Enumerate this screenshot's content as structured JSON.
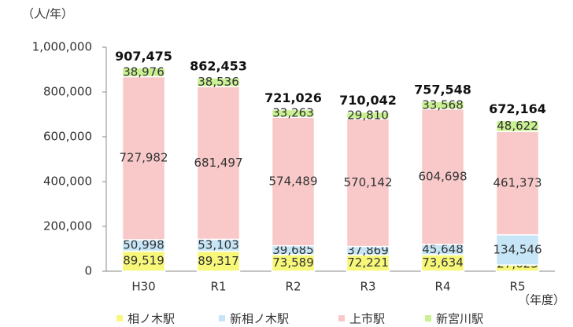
{
  "chart_data": {
    "type": "stacked-bar",
    "y_axis_label": "（人/年）",
    "x_axis_label": "（年度）",
    "categories": [
      "H30",
      "R1",
      "R2",
      "R3",
      "R4",
      "R5"
    ],
    "series": [
      {
        "name": "相ノ木駅",
        "color": "#f7f77a",
        "values": [
          89519,
          89317,
          73589,
          72221,
          73634,
          27623
        ],
        "value_labels": [
          "89,519",
          "89,317",
          "73,589",
          "72,221",
          "73,634",
          "27,623"
        ]
      },
      {
        "name": "新相ノ木駅",
        "color": "#c6e6f8",
        "values": [
          50998,
          53103,
          39685,
          37869,
          45648,
          134546
        ],
        "value_labels": [
          "50,998",
          "53,103",
          "39,685",
          "37,869",
          "45,648",
          "134,546"
        ]
      },
      {
        "name": "上市駅",
        "color": "#f9c9c9",
        "values": [
          727982,
          681497,
          574489,
          570142,
          604698,
          461373
        ],
        "value_labels": [
          "727,982",
          "681,497",
          "574,489",
          "570,142",
          "604,698",
          "461,373"
        ]
      },
      {
        "name": "新宮川駅",
        "color": "#c9f191",
        "values": [
          38976,
          38536,
          33263,
          29810,
          33568,
          48622
        ],
        "value_labels": [
          "38,976",
          "38,536",
          "33,263",
          "29,810",
          "33,568",
          "48,622"
        ]
      }
    ],
    "totals": {
      "values": [
        907475,
        862453,
        721026,
        710042,
        757548,
        672164
      ],
      "value_labels": [
        "907,475",
        "862,453",
        "721,026",
        "710,042",
        "757,548",
        "672,164"
      ]
    },
    "ylim": [
      0,
      1000000
    ],
    "yticks": [
      0,
      {
        "value": 200000,
        "label": "200,000"
      },
      {
        "value": 400000,
        "label": "400,000"
      },
      {
        "value": 600000,
        "label": "600,000"
      },
      {
        "value": 800000,
        "label": "800,000"
      },
      {
        "value": 1000000,
        "label": "1,000,000"
      }
    ]
  }
}
